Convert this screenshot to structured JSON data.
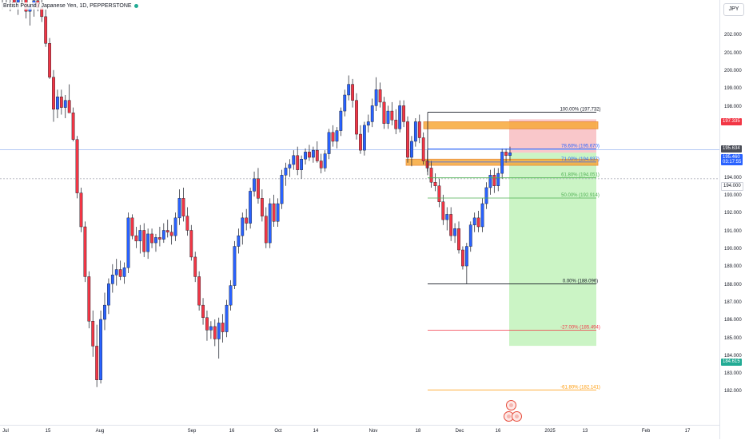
{
  "symbol": {
    "title": "British Pound / Japanese Yen, 1D, PEPPERSTONE",
    "status_color": "#22ab94"
  },
  "currency_button": "JPY",
  "colors": {
    "up": "#2962ff",
    "down": "#f23645",
    "long_zone": "#b9f0b2",
    "short_zone": "#f7b4b8",
    "ob_fill": "#f7a93a",
    "fib_green": "#4caf50",
    "fib_red": "#f23645",
    "fib_orange": "#ff9800",
    "fib_blue": "#2962ff"
  },
  "price_axis": {
    "ticks": [
      "202.000",
      "201.000",
      "200.000",
      "199.000",
      "198.000",
      "197.000",
      "194.000",
      "193.000",
      "192.000",
      "191.000",
      "190.000",
      "189.000",
      "188.000",
      "187.000",
      "186.000",
      "185.000",
      "184.000",
      "183.000",
      "182.000"
    ],
    "tags": {
      "target": "197.335",
      "current": "195.634",
      "last": "195.460",
      "countdown": "03:17:55",
      "level_194": "194.000",
      "stop": "184.615"
    }
  },
  "time_axis": {
    "labels": [
      "Jul",
      "15",
      "Aug",
      "Sep",
      "16",
      "Oct",
      "14",
      "Nov",
      "18",
      "Dec",
      "16",
      "2025",
      "13",
      "Feb",
      "17"
    ]
  },
  "fib_levels": [
    {
      "label": "100.00% (197.732)",
      "price": 197.732
    },
    {
      "label": "78.60% (195.670)",
      "price": 195.67
    },
    {
      "label": "71.00% (194.937)",
      "price": 194.937
    },
    {
      "label": "61.80% (194.051)",
      "price": 194.051
    },
    {
      "label": "50.00% (192.914)",
      "price": 192.914
    },
    {
      "label": "0.00% (188.096)",
      "price": 188.096
    },
    {
      "label": "-27.00% (185.494)",
      "price": 185.494
    },
    {
      "label": "-61.80% (182.141)",
      "price": 182.141
    }
  ],
  "candles": [
    [
      204.2,
      204.9,
      203.5,
      204.6
    ],
    [
      204.6,
      205.1,
      203.9,
      204.1
    ],
    [
      204.1,
      204.7,
      203.4,
      204.3
    ],
    [
      204.3,
      204.8,
      203.6,
      203.9
    ],
    [
      203.9,
      204.4,
      203.2,
      204.2
    ],
    [
      204.2,
      204.9,
      203.7,
      204.5
    ],
    [
      204.5,
      204.7,
      203.0,
      203.4
    ],
    [
      203.4,
      203.9,
      202.6,
      203.7
    ],
    [
      203.7,
      204.3,
      203.1,
      204.0
    ],
    [
      204.0,
      204.6,
      203.4,
      203.6
    ],
    [
      203.6,
      204.2,
      202.8,
      203.1
    ],
    [
      203.1,
      203.5,
      201.4,
      201.6
    ],
    [
      201.6,
      201.9,
      199.6,
      199.7
    ],
    [
      199.7,
      200.1,
      197.2,
      197.9
    ],
    [
      197.9,
      199.0,
      197.4,
      198.6
    ],
    [
      198.6,
      199.0,
      197.6,
      198.0
    ],
    [
      198.0,
      198.7,
      197.4,
      198.4
    ],
    [
      198.4,
      199.3,
      197.9,
      197.7
    ],
    [
      197.7,
      198.0,
      196.1,
      196.2
    ],
    [
      196.2,
      196.4,
      192.9,
      193.2
    ],
    [
      193.2,
      193.5,
      191.0,
      191.3
    ],
    [
      191.3,
      191.6,
      188.2,
      188.5
    ],
    [
      188.5,
      188.8,
      185.6,
      186.0
    ],
    [
      186.0,
      186.6,
      184.0,
      184.6
    ],
    [
      184.6,
      185.8,
      182.3,
      182.7
    ],
    [
      182.7,
      186.6,
      182.5,
      186.1
    ],
    [
      186.1,
      187.6,
      185.5,
      186.9
    ],
    [
      186.9,
      188.4,
      186.4,
      188.1
    ],
    [
      188.1,
      189.2,
      187.6,
      188.6
    ],
    [
      188.6,
      189.5,
      188.0,
      188.9
    ],
    [
      188.9,
      189.4,
      188.3,
      188.5
    ],
    [
      188.5,
      189.3,
      188.1,
      189.0
    ],
    [
      189.0,
      192.1,
      188.7,
      191.8
    ],
    [
      191.8,
      192.0,
      190.6,
      190.8
    ],
    [
      190.8,
      191.3,
      190.1,
      190.5
    ],
    [
      190.5,
      191.4,
      189.8,
      191.1
    ],
    [
      191.1,
      191.5,
      189.6,
      189.9
    ],
    [
      189.9,
      191.2,
      189.5,
      190.9
    ],
    [
      190.9,
      191.2,
      190.1,
      190.4
    ],
    [
      190.4,
      190.9,
      189.9,
      190.7
    ],
    [
      190.7,
      191.3,
      190.2,
      190.6
    ],
    [
      190.6,
      191.5,
      190.4,
      191.1
    ],
    [
      191.1,
      191.7,
      190.7,
      191.0
    ],
    [
      191.0,
      191.4,
      190.3,
      190.8
    ],
    [
      190.8,
      192.1,
      190.5,
      191.8
    ],
    [
      191.8,
      193.4,
      191.4,
      192.9
    ],
    [
      192.9,
      193.5,
      191.6,
      191.9
    ],
    [
      191.9,
      192.4,
      190.8,
      191.1
    ],
    [
      191.1,
      191.4,
      189.4,
      189.6
    ],
    [
      189.6,
      189.9,
      188.2,
      188.5
    ],
    [
      188.5,
      188.8,
      186.6,
      186.9
    ],
    [
      186.9,
      187.3,
      185.8,
      186.2
    ],
    [
      186.2,
      186.6,
      184.9,
      185.5
    ],
    [
      185.5,
      186.0,
      185.0,
      185.7
    ],
    [
      185.7,
      186.1,
      184.6,
      185.0
    ],
    [
      185.0,
      186.2,
      183.9,
      185.9
    ],
    [
      185.9,
      186.4,
      184.8,
      185.4
    ],
    [
      185.4,
      187.2,
      185.1,
      186.9
    ],
    [
      186.9,
      188.3,
      186.6,
      188.0
    ],
    [
      188.0,
      190.5,
      187.8,
      190.2
    ],
    [
      190.2,
      191.2,
      189.8,
      190.8
    ],
    [
      190.8,
      192.1,
      190.3,
      191.8
    ],
    [
      191.8,
      192.3,
      191.1,
      191.5
    ],
    [
      191.5,
      193.5,
      191.2,
      193.3
    ],
    [
      193.3,
      194.4,
      193.0,
      194.0
    ],
    [
      194.0,
      194.6,
      192.6,
      192.9
    ],
    [
      192.9,
      193.4,
      191.6,
      191.9
    ],
    [
      191.9,
      192.4,
      190.1,
      190.4
    ],
    [
      190.4,
      192.9,
      190.1,
      192.6
    ],
    [
      192.6,
      193.1,
      191.3,
      191.6
    ],
    [
      191.6,
      192.9,
      191.3,
      192.6
    ],
    [
      192.6,
      194.5,
      192.3,
      194.2
    ],
    [
      194.2,
      194.9,
      193.6,
      194.6
    ],
    [
      194.6,
      195.1,
      194.1,
      194.8
    ],
    [
      194.8,
      195.6,
      194.5,
      195.3
    ],
    [
      195.3,
      195.8,
      194.2,
      194.5
    ],
    [
      194.5,
      195.3,
      194.0,
      195.1
    ],
    [
      195.1,
      195.7,
      194.8,
      195.5
    ],
    [
      195.5,
      195.9,
      195.0,
      195.2
    ],
    [
      195.2,
      195.8,
      194.9,
      195.6
    ],
    [
      195.6,
      196.1,
      194.9,
      195.0
    ],
    [
      195.0,
      195.4,
      194.3,
      194.6
    ],
    [
      194.6,
      195.6,
      194.4,
      195.4
    ],
    [
      195.4,
      196.8,
      195.1,
      196.6
    ],
    [
      196.6,
      197.0,
      195.8,
      196.1
    ],
    [
      196.1,
      196.9,
      195.7,
      196.7
    ],
    [
      196.7,
      198.0,
      196.4,
      197.8
    ],
    [
      197.8,
      199.0,
      197.5,
      198.7
    ],
    [
      198.7,
      199.8,
      198.4,
      199.3
    ],
    [
      199.3,
      199.6,
      198.0,
      198.4
    ],
    [
      198.4,
      198.8,
      196.2,
      196.5
    ],
    [
      196.5,
      197.0,
      195.4,
      195.6
    ],
    [
      195.6,
      197.2,
      195.3,
      197.0
    ],
    [
      197.0,
      197.6,
      196.6,
      197.2
    ],
    [
      197.2,
      198.5,
      196.9,
      198.1
    ],
    [
      198.1,
      199.7,
      197.8,
      199.0
    ],
    [
      199.0,
      199.4,
      198.0,
      198.3
    ],
    [
      198.3,
      198.6,
      196.8,
      197.1
    ],
    [
      197.1,
      198.1,
      196.8,
      197.8
    ],
    [
      197.8,
      198.3,
      197.0,
      197.3
    ],
    [
      197.3,
      197.9,
      196.5,
      196.8
    ],
    [
      196.8,
      198.4,
      196.6,
      198.1
    ],
    [
      198.1,
      198.4,
      196.9,
      197.2
    ],
    [
      197.2,
      197.5,
      194.9,
      195.2
    ],
    [
      195.2,
      196.4,
      194.7,
      196.1
    ],
    [
      196.1,
      197.4,
      195.8,
      197.2
    ],
    [
      197.2,
      197.6,
      196.0,
      196.3
    ],
    [
      196.3,
      196.6,
      194.8,
      195.0
    ],
    [
      195.0,
      195.6,
      194.4,
      194.6
    ],
    [
      194.6,
      195.0,
      193.5,
      193.8
    ],
    [
      193.8,
      194.3,
      193.3,
      193.6
    ],
    [
      193.6,
      194.0,
      192.4,
      192.7
    ],
    [
      192.7,
      193.1,
      191.4,
      191.7
    ],
    [
      191.7,
      192.4,
      191.1,
      192.0
    ],
    [
      192.0,
      192.4,
      190.5,
      190.8
    ],
    [
      190.8,
      191.5,
      190.4,
      191.2
    ],
    [
      191.2,
      191.6,
      189.8,
      190.0
    ],
    [
      190.0,
      190.2,
      188.9,
      189.1
    ],
    [
      189.1,
      190.4,
      188.1,
      190.2
    ],
    [
      190.2,
      191.6,
      189.9,
      191.4
    ],
    [
      191.4,
      192.1,
      191.0,
      191.8
    ],
    [
      191.8,
      192.2,
      191.0,
      191.3
    ],
    [
      191.3,
      192.9,
      191.0,
      192.6
    ],
    [
      192.6,
      193.8,
      192.3,
      193.5
    ],
    [
      193.5,
      194.5,
      193.1,
      194.2
    ],
    [
      194.2,
      194.6,
      193.2,
      193.6
    ],
    [
      193.6,
      194.6,
      193.3,
      194.3
    ],
    [
      194.3,
      195.7,
      194.0,
      195.5
    ],
    [
      195.5,
      195.7,
      194.9,
      195.3
    ],
    [
      195.3,
      195.8,
      195.0,
      195.46
    ]
  ]
}
